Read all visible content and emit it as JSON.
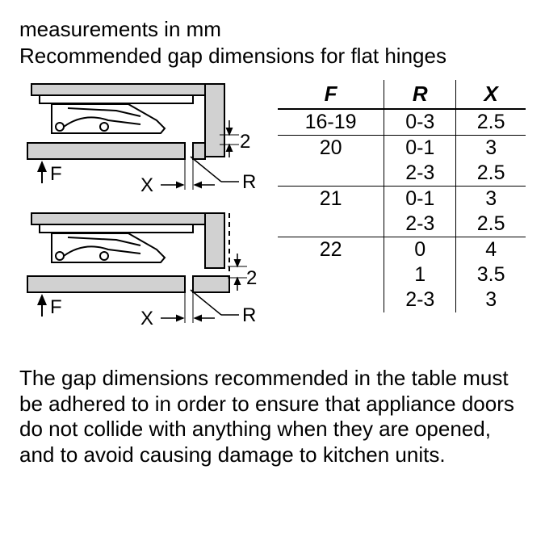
{
  "header": {
    "line1": "measurements in mm",
    "line2": "Recommended gap dimensions for flat hinges"
  },
  "diagram": {
    "labels": {
      "F": "F",
      "X": "X",
      "R": "R",
      "gap": "2"
    },
    "colors": {
      "stroke": "#000000",
      "fill_gray": "#d1d1d1",
      "fill_dark": "#6d6d6d",
      "bg": "#ffffff"
    },
    "stroke_width": 2,
    "font_size": 24
  },
  "table": {
    "columns": [
      "F",
      "R",
      "X"
    ],
    "rows": [
      {
        "sep": false,
        "cells": [
          "16-19",
          "0-3",
          "2.5"
        ]
      },
      {
        "sep": true,
        "cells": [
          "20",
          "0-1",
          "3"
        ]
      },
      {
        "sep": false,
        "cells": [
          "",
          "2-3",
          "2.5"
        ]
      },
      {
        "sep": true,
        "cells": [
          "21",
          "0-1",
          "3"
        ]
      },
      {
        "sep": false,
        "cells": [
          "",
          "2-3",
          "2.5"
        ]
      },
      {
        "sep": true,
        "cells": [
          "22",
          "0",
          "4"
        ]
      },
      {
        "sep": false,
        "cells": [
          "",
          "1",
          "3.5"
        ]
      },
      {
        "sep": false,
        "cells": [
          "",
          "2-3",
          "3"
        ]
      }
    ],
    "header_fontsize": 26,
    "cell_fontsize": 25
  },
  "footer": {
    "text": "The gap dimensions recommended in the table must be adhered to in order to ensure that appliance doors do not collide with anything when they are opened, and to avoid causing damage to kitchen units."
  }
}
